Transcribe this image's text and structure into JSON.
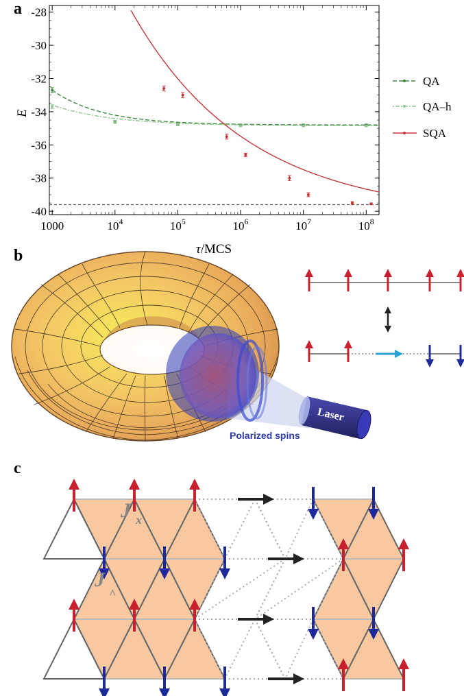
{
  "panels": {
    "a": "a",
    "b": "b",
    "c": "c"
  },
  "chart_data": {
    "type": "line",
    "xscale": "log",
    "xlabel_main": "τ",
    "xlabel_unit": "/MCS",
    "ylabel": "E",
    "xlim": [
      900,
      160000000
    ],
    "ylim": [
      -40.2,
      -27.6
    ],
    "x_ticks": [
      {
        "value": 1000,
        "base": "1000",
        "exp": ""
      },
      {
        "value": 10000,
        "base": "10",
        "exp": "4"
      },
      {
        "value": 100000,
        "base": "10",
        "exp": "5"
      },
      {
        "value": 1000000,
        "base": "10",
        "exp": "6"
      },
      {
        "value": 10000000,
        "base": "10",
        "exp": "7"
      },
      {
        "value": 100000000,
        "base": "10",
        "exp": "8"
      }
    ],
    "y_ticks": [
      -28,
      -30,
      -32,
      -34,
      -36,
      -38,
      -40
    ],
    "y_tick_labels": [
      "-28",
      "-30",
      "-32",
      "-34",
      "-36",
      "-38",
      "-40"
    ],
    "reference_line_y": -39.6,
    "series": [
      {
        "name": "QA",
        "color": "#3f8a3f",
        "dash": "6,3",
        "marker": "square",
        "x": [
          1000,
          10000,
          100000,
          1000000,
          10000000,
          100000000
        ],
        "y": [
          -32.7,
          -34.6,
          -34.75,
          -34.8,
          -34.8,
          -34.8
        ],
        "err": [
          0.15,
          0.06,
          0.05,
          0.05,
          0.05,
          0.05
        ],
        "fit": {
          "a": -34.8,
          "b": 2.1,
          "c": 0.55
        }
      },
      {
        "name": "QA–h",
        "color": "#8fc48f",
        "dash": "2,2,6,2",
        "marker": "triangle",
        "x": [
          1000,
          10000,
          100000,
          1000000,
          10000000,
          100000000
        ],
        "y": [
          -33.7,
          -34.65,
          -34.8,
          -34.85,
          -34.85,
          -34.85
        ],
        "err": [
          0.12,
          0.05,
          0.05,
          0.05,
          0.05,
          0.05
        ],
        "fit": {
          "a": -34.85,
          "b": 1.25,
          "c": 0.45
        }
      },
      {
        "name": "SQA",
        "color": "#c4383a",
        "dash": "",
        "marker": "dot",
        "x": [
          60000,
          120000,
          600000,
          1200000,
          6000000,
          12000000,
          60000000,
          120000000
        ],
        "y": [
          -32.6,
          -33.0,
          -35.5,
          -36.6,
          -38.0,
          -39.0,
          -39.5,
          -39.55
        ],
        "err": [
          0.15,
          0.15,
          0.15,
          0.1,
          0.15,
          0.12,
          0.08,
          0.05
        ],
        "fit": {
          "a": -40.3,
          "b": 12.4,
          "c": 0.235,
          "x_start": 18000
        }
      }
    ]
  },
  "torus": {
    "laser_label": "Laser",
    "polarized_label": "Polarized spins",
    "colors": {
      "torus_body": "#f0b060",
      "torus_highlight": "#f7e860",
      "laser": "#2f2f8a",
      "spin_up": "#c8202e",
      "spin_down": "#1f2a9a",
      "flipped": "#2ea0d8"
    }
  },
  "lattice": {
    "coupling_x": "J",
    "coupling_x_sub": "x",
    "coupling_t": "J",
    "coupling_t_sub": "^"
  }
}
